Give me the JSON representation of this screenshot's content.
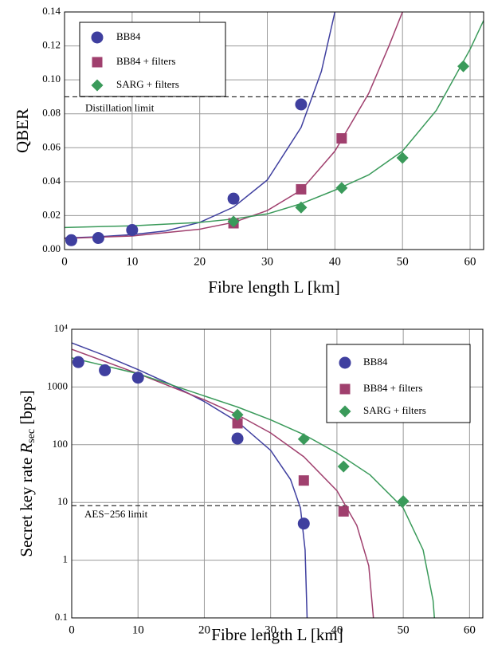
{
  "chart_data": [
    {
      "type": "scatter",
      "xlabel": "Fibre length L [km]",
      "ylabel": "QBER",
      "xlim": [
        0,
        62
      ],
      "ylim": [
        0,
        0.14
      ],
      "xticks": [
        0,
        10,
        20,
        30,
        40,
        50,
        60
      ],
      "yticks": [
        {
          "value": 0,
          "label": "0.00"
        },
        {
          "value": 0.02,
          "label": "0.02"
        },
        {
          "value": 0.04,
          "label": "0.04"
        },
        {
          "value": 0.06,
          "label": "0.06"
        },
        {
          "value": 0.08,
          "label": "0.08"
        },
        {
          "value": 0.1,
          "label": "0.10"
        },
        {
          "value": 0.12,
          "label": "0.12"
        },
        {
          "value": 0.14,
          "label": "0.14"
        }
      ],
      "grid": true,
      "log_y": false,
      "legend": "upper left",
      "series": [
        {
          "name": "BB84",
          "color": "#3f3f9f",
          "marker": "circle",
          "x": [
            1,
            5,
            10,
            25,
            35
          ],
          "values": [
            0.0055,
            0.0068,
            0.0115,
            0.03,
            0.0855
          ]
        },
        {
          "name": "BB84 + filters",
          "color": "#a0406e",
          "marker": "square",
          "x": [
            25,
            35,
            41
          ],
          "values": [
            0.0155,
            0.0355,
            0.0655
          ]
        },
        {
          "name": "SARG + filters",
          "color": "#3a9a5a",
          "marker": "diamond",
          "x": [
            25,
            35,
            41,
            50,
            59
          ],
          "values": [
            0.0165,
            0.0248,
            0.0363,
            0.054,
            0.108
          ]
        }
      ],
      "lines": [
        {
          "color": "#3f3f9f",
          "x": [
            0,
            5,
            10,
            15,
            20,
            25,
            30,
            35,
            38,
            40
          ],
          "values": [
            0.0068,
            0.0075,
            0.0088,
            0.011,
            0.016,
            0.025,
            0.041,
            0.072,
            0.105,
            0.14
          ]
        },
        {
          "color": "#a0406e",
          "x": [
            0,
            10,
            20,
            25,
            30,
            35,
            40,
            45,
            48,
            50
          ],
          "values": [
            0.0065,
            0.008,
            0.012,
            0.016,
            0.023,
            0.035,
            0.058,
            0.092,
            0.12,
            0.14
          ]
        },
        {
          "color": "#3a9a5a",
          "x": [
            0,
            10,
            20,
            25,
            30,
            35,
            40,
            45,
            50,
            55,
            60,
            62
          ],
          "values": [
            0.013,
            0.014,
            0.016,
            0.018,
            0.021,
            0.027,
            0.035,
            0.044,
            0.058,
            0.082,
            0.118,
            0.135
          ]
        }
      ],
      "hlines": [
        {
          "value": 0.09,
          "label": "Distillation limit"
        }
      ]
    },
    {
      "type": "scatter",
      "xlabel": "Fibre length L [km]",
      "ylabel": "Secret key rate ",
      "ylabel_symbol": "R",
      "ylabel_subscript": "sec",
      "ylabel_unit": " [bps]",
      "xlim": [
        0,
        62
      ],
      "ylim": [
        0.1,
        10000
      ],
      "xticks": [
        0,
        10,
        20,
        30,
        40,
        50,
        60
      ],
      "yticks": [
        0.1,
        1,
        10,
        100,
        1000,
        {
          "value": 10000,
          "label": "10⁴"
        }
      ],
      "grid": true,
      "log_y": true,
      "legend": "upper right",
      "series": [
        {
          "name": "BB84",
          "color": "#3f3f9f",
          "marker": "circle",
          "x": [
            1,
            5,
            10,
            25,
            35
          ],
          "values": [
            2700,
            1950,
            1450,
            128,
            4.3
          ]
        },
        {
          "name": "BB84 + filters",
          "color": "#a0406e",
          "marker": "square",
          "x": [
            25,
            35,
            41
          ],
          "values": [
            235,
            24,
            7
          ]
        },
        {
          "name": "SARG + filters",
          "color": "#3a9a5a",
          "marker": "diamond",
          "x": [
            25,
            35,
            41,
            50
          ],
          "values": [
            330,
            125,
            42,
            10.5
          ]
        }
      ],
      "lines": [
        {
          "color": "#3f3f9f",
          "x": [
            0,
            5,
            10,
            15,
            20,
            25,
            30,
            33,
            34.5,
            35.2,
            35.5
          ],
          "values": [
            5800,
            3500,
            2000,
            1100,
            560,
            250,
            80,
            25,
            8,
            1.5,
            0.1
          ]
        },
        {
          "color": "#a0406e",
          "x": [
            0,
            10,
            20,
            25,
            30,
            35,
            40,
            43,
            44.8,
            45.5
          ],
          "values": [
            4500,
            1700,
            600,
            330,
            160,
            62,
            16,
            4,
            0.8,
            0.1
          ]
        },
        {
          "color": "#3a9a5a",
          "x": [
            0,
            10,
            20,
            25,
            30,
            35,
            40,
            45,
            50,
            53,
            54.5,
            54.7
          ],
          "values": [
            3200,
            1700,
            700,
            450,
            270,
            150,
            72,
            30,
            8,
            1.5,
            0.2,
            0.1
          ]
        }
      ],
      "hlines": [
        {
          "value": 8.8,
          "label": "AES−256 limit"
        }
      ]
    }
  ]
}
